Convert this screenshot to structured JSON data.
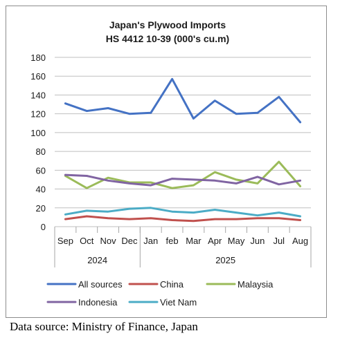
{
  "chart_data": {
    "type": "line",
    "title_lines": [
      "Japan's Plywood Imports",
      "HS 4412 10-39  (000's cu.m)"
    ],
    "categories": [
      "Sep",
      "Oct",
      "Nov",
      "Dec",
      "Jan",
      "feb",
      "Mar",
      "Apr",
      "May",
      "Jun",
      "Jul",
      "Aug"
    ],
    "year_groups": [
      {
        "label": "2024",
        "count": 4
      },
      {
        "label": "2025",
        "count": 8
      }
    ],
    "ylim": [
      0,
      180
    ],
    "yticks": [
      0,
      20,
      40,
      60,
      80,
      100,
      120,
      140,
      160,
      180
    ],
    "grid": true,
    "legend_position": "bottom",
    "series": [
      {
        "name": "All sources",
        "color": "#4472c4",
        "values": [
          131,
          123,
          126,
          120,
          121,
          157,
          115,
          134,
          120,
          121,
          138,
          111
        ]
      },
      {
        "name": "China",
        "color": "#c0504d",
        "values": [
          8,
          11,
          9,
          8,
          9,
          7,
          6,
          8,
          8,
          9,
          9,
          7
        ]
      },
      {
        "name": "Malaysia",
        "color": "#9bbb59",
        "values": [
          54,
          41,
          52,
          47,
          47,
          41,
          44,
          58,
          50,
          46,
          69,
          43
        ]
      },
      {
        "name": "Indonesia",
        "color": "#8064a2",
        "values": [
          55,
          54,
          49,
          46,
          44,
          51,
          50,
          49,
          46,
          53,
          45,
          49
        ]
      },
      {
        "name": "Viet Nam",
        "color": "#4bacc6",
        "values": [
          13,
          17,
          16,
          19,
          20,
          16,
          15,
          18,
          15,
          12,
          15,
          11
        ]
      }
    ]
  },
  "source_note": "Data source: Ministry of Finance, Japan"
}
